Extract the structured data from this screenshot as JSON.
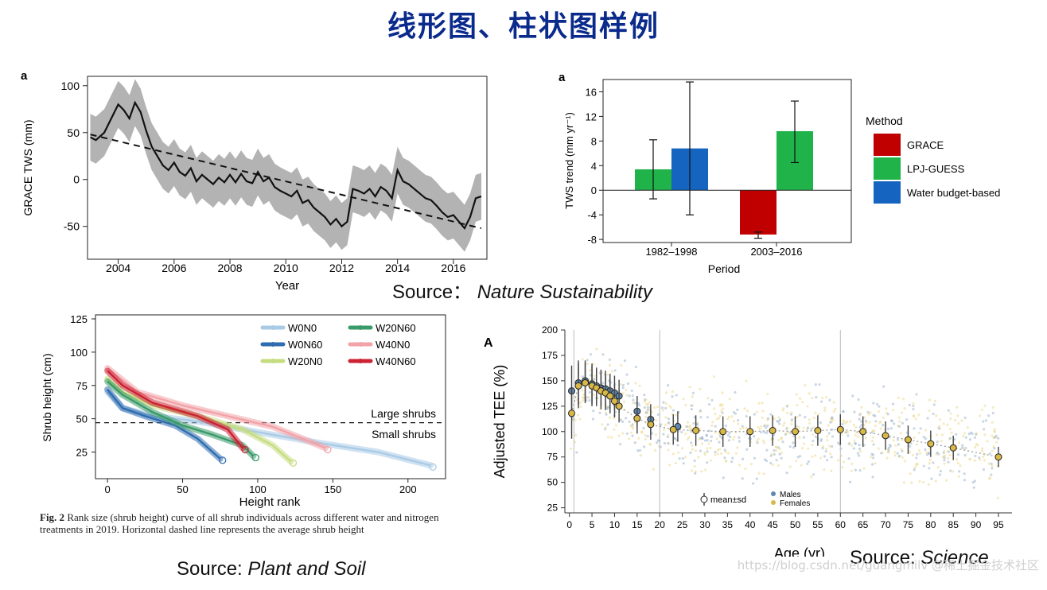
{
  "page_title": "线形图、柱状图样例",
  "sources": {
    "nature": {
      "prefix": "Source：",
      "name": "Nature Sustainability"
    },
    "plant": {
      "prefix": "Source: ",
      "name": "Plant and Soil"
    },
    "science": {
      "prefix": "Source: ",
      "name": "Science"
    }
  },
  "caption": {
    "label": "Fig. 2",
    "text": "Rank size (shrub height) curve of all shrub individuals across different water and nitrogen treatments in 2019. Horizontal dashed line represents the average shrub height"
  },
  "watermark": "https://blog.csdn.net/guangmilv @稀土掘金技术社区",
  "colors": {
    "grace": "#c00000",
    "lpj": "#1fb34a",
    "wb": "#1565c0",
    "band": "#b3b3b3"
  },
  "chart_data": [
    {
      "id": "grace_line",
      "type": "line",
      "panel_label": "a",
      "title": "",
      "xlabel": "Year",
      "ylabel": "GRACE TWS (mm)",
      "xlim": [
        2002.9,
        2017.2
      ],
      "ylim": [
        -85,
        110
      ],
      "xticks": [
        2004,
        2006,
        2008,
        2010,
        2012,
        2014,
        2016
      ],
      "yticks": [
        100,
        50,
        0,
        -50
      ],
      "series": [
        {
          "name": "GRACE TWS",
          "x": [
            2003.0,
            2003.2,
            2003.5,
            2003.8,
            2004.0,
            2004.2,
            2004.4,
            2004.6,
            2004.8,
            2005.0,
            2005.2,
            2005.4,
            2005.6,
            2005.8,
            2006.0,
            2006.2,
            2006.4,
            2006.6,
            2006.8,
            2007.0,
            2007.2,
            2007.4,
            2007.6,
            2007.8,
            2008.0,
            2008.2,
            2008.4,
            2008.6,
            2008.8,
            2009.0,
            2009.2,
            2009.4,
            2009.6,
            2009.8,
            2010.0,
            2010.2,
            2010.4,
            2010.6,
            2010.8,
            2011.0,
            2011.2,
            2011.4,
            2011.6,
            2011.8,
            2012.0,
            2012.2,
            2012.4,
            2012.6,
            2012.8,
            2013.0,
            2013.2,
            2013.4,
            2013.6,
            2013.8,
            2014.0,
            2014.2,
            2014.4,
            2014.6,
            2014.8,
            2015.0,
            2015.2,
            2015.4,
            2015.6,
            2015.8,
            2016.0,
            2016.2,
            2016.4,
            2016.6,
            2016.8,
            2017.0
          ],
          "y": [
            45,
            42,
            50,
            68,
            80,
            74,
            65,
            82,
            72,
            52,
            35,
            25,
            15,
            10,
            18,
            8,
            4,
            12,
            -2,
            5,
            0,
            -5,
            2,
            -3,
            5,
            -3,
            6,
            -2,
            -4,
            8,
            -2,
            2,
            -8,
            -12,
            -15,
            -18,
            -12,
            -25,
            -22,
            -30,
            -35,
            -40,
            -48,
            -42,
            -50,
            -45,
            -10,
            -12,
            -15,
            -10,
            -18,
            -8,
            -12,
            -20,
            10,
            -2,
            -5,
            -10,
            -15,
            -20,
            -22,
            -28,
            -35,
            -40,
            -38,
            -45,
            -52,
            -40,
            -20,
            -18
          ]
        },
        {
          "name": "Linear trend",
          "x": [
            2003.0,
            2017.0
          ],
          "y": [
            48,
            -52
          ]
        }
      ],
      "band_halfwidth": 25
    },
    {
      "id": "tws_trend_bar",
      "type": "bar",
      "panel_label": "a",
      "title": "",
      "xlabel": "Period",
      "ylabel": "TWS trend (mm yr⁻¹)",
      "ylim": [
        -8.5,
        18
      ],
      "yticks": [
        16,
        12,
        8,
        4,
        0,
        -4,
        -8
      ],
      "categories": [
        "1982–1998",
        "2003–2016"
      ],
      "legend_title": "Method",
      "series": [
        {
          "name": "GRACE",
          "color": "#c00000",
          "values": [
            null,
            -7.2
          ],
          "err_low": [
            null,
            -7.8
          ],
          "err_high": [
            null,
            -6.8
          ]
        },
        {
          "name": "LPJ-GUESS",
          "color": "#1fb34a",
          "values": [
            3.4,
            9.6
          ],
          "err_low": [
            -1.4,
            4.5
          ],
          "err_high": [
            8.2,
            14.5
          ]
        },
        {
          "name": "Water budget-based",
          "color": "#1565c0",
          "values": [
            6.8,
            null
          ],
          "err_low": [
            -4.0,
            null
          ],
          "err_high": [
            17.6,
            null
          ]
        }
      ]
    },
    {
      "id": "shrub_rank",
      "type": "line",
      "title": "",
      "xlabel": "Height rank",
      "ylabel": "Shrub height (cm)",
      "xlim": [
        -8,
        225
      ],
      "ylim": [
        5,
        128
      ],
      "xticks": [
        0,
        50,
        100,
        150,
        200
      ],
      "yticks": [
        125,
        100,
        75,
        50,
        25
      ],
      "reference_line": 47,
      "annotations": [
        "Large shrubs",
        "Small shrubs"
      ],
      "series": [
        {
          "name": "W0N0",
          "color": "#a9cbe6",
          "x": [
            0,
            10,
            30,
            60,
            100,
            140,
            180,
            215
          ],
          "y": [
            70,
            58,
            52,
            48,
            40,
            32,
            25,
            15
          ]
        },
        {
          "name": "W0N60",
          "color": "#2f6db0",
          "x": [
            0,
            10,
            25,
            45,
            60,
            75
          ],
          "y": [
            72,
            58,
            52,
            45,
            35,
            20
          ]
        },
        {
          "name": "W20N0",
          "color": "#c6dc80",
          "x": [
            0,
            10,
            30,
            60,
            90,
            110,
            122
          ],
          "y": [
            80,
            70,
            60,
            52,
            42,
            30,
            18
          ]
        },
        {
          "name": "W20N60",
          "color": "#3a9a6a",
          "x": [
            0,
            10,
            30,
            50,
            70,
            90,
            97
          ],
          "y": [
            78,
            68,
            55,
            45,
            38,
            30,
            22
          ]
        },
        {
          "name": "W40N0",
          "color": "#f2a3a8",
          "x": [
            0,
            20,
            50,
            80,
            110,
            130,
            145
          ],
          "y": [
            88,
            70,
            60,
            52,
            44,
            35,
            28
          ]
        },
        {
          "name": "W40N60",
          "color": "#cc2233",
          "x": [
            0,
            10,
            30,
            60,
            80,
            90
          ],
          "y": [
            86,
            75,
            62,
            52,
            42,
            28
          ]
        }
      ]
    },
    {
      "id": "tee_age",
      "type": "scatter",
      "panel_label": "A",
      "title": "",
      "xlabel": "Age (yr)",
      "ylabel": "Adjusted TEE (%)",
      "xlim": [
        -1,
        98
      ],
      "ylim": [
        20,
        200
      ],
      "xticks": [
        0,
        5,
        10,
        15,
        20,
        25,
        30,
        35,
        40,
        45,
        50,
        55,
        60,
        65,
        70,
        75,
        80,
        85,
        90,
        95
      ],
      "yticks": [
        200,
        175,
        150,
        125,
        100,
        75,
        50,
        25
      ],
      "vlines": [
        1,
        20,
        60
      ],
      "legend": [
        "mean±sd",
        "Males",
        "Females"
      ],
      "series": [
        {
          "name": "Males",
          "color": "#5f86ad",
          "x": [
            0.5,
            2,
            3.5,
            5,
            6,
            7,
            8,
            9,
            10,
            11,
            15,
            18,
            24
          ],
          "y": [
            140,
            148,
            150,
            147,
            145,
            143,
            142,
            140,
            138,
            135,
            120,
            112,
            105
          ],
          "sd": [
            25,
            22,
            20,
            20,
            18,
            18,
            18,
            17,
            17,
            16,
            15,
            15,
            15
          ]
        },
        {
          "name": "Females",
          "color": "#d8b846",
          "x": [
            0.5,
            2,
            3.5,
            5,
            6,
            7,
            8,
            9,
            10,
            11,
            15,
            18,
            23,
            28,
            34,
            40,
            45,
            50,
            55,
            60,
            65,
            70,
            75,
            80,
            85,
            95
          ],
          "y": [
            118,
            145,
            148,
            145,
            143,
            140,
            138,
            135,
            130,
            125,
            113,
            107,
            102,
            101,
            100,
            100,
            101,
            100,
            101,
            102,
            100,
            96,
            92,
            88,
            84,
            75
          ],
          "sd": [
            25,
            22,
            20,
            20,
            18,
            18,
            17,
            17,
            16,
            16,
            15,
            15,
            15,
            15,
            15,
            15,
            15,
            15,
            15,
            15,
            15,
            14,
            14,
            13,
            12,
            10
          ]
        }
      ]
    }
  ]
}
